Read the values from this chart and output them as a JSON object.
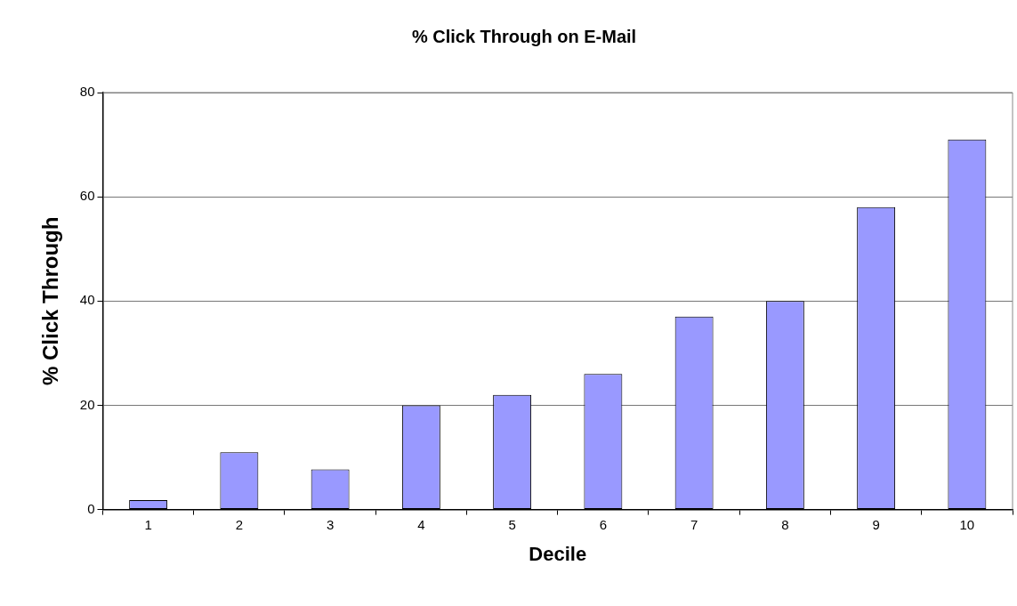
{
  "chart_data": {
    "type": "bar",
    "title": "% Click Through on E-Mail",
    "xlabel": "Decile",
    "ylabel": "% Click Through",
    "categories": [
      "1",
      "2",
      "3",
      "4",
      "5",
      "6",
      "7",
      "8",
      "9",
      "10"
    ],
    "values": [
      1.8,
      11,
      7.7,
      20,
      22,
      26,
      37,
      40,
      58,
      71
    ],
    "color": "#9999ff",
    "ylim": [
      0,
      80
    ],
    "yticks": [
      0,
      20,
      40,
      60,
      80
    ],
    "grid": "y",
    "legend": false
  }
}
